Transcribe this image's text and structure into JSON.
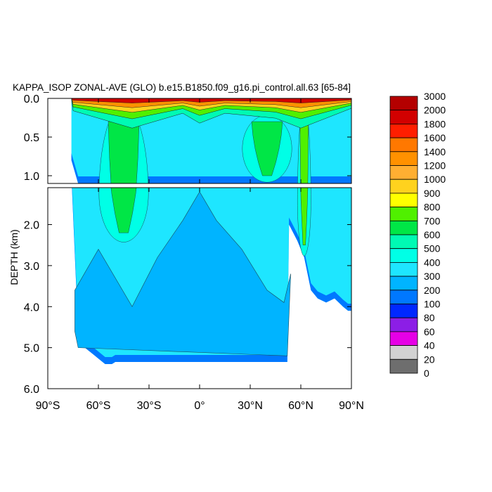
{
  "chart_data": {
    "type": "heatmap",
    "title": "KAPPA_ISOP ZONAL-AVE (GLO) b.e15.B1850.f09_g16.pi_control.all.63 [65-84]",
    "xlabel": "",
    "ylabel": "DEPTH (km)",
    "xlim": [
      -90,
      90
    ],
    "ylim": [
      6.0,
      0.0
    ],
    "x_ticks": [
      {
        "value": -90,
        "label": "90°S"
      },
      {
        "value": -60,
        "label": "60°S"
      },
      {
        "value": -30,
        "label": "30°S"
      },
      {
        "value": 0,
        "label": "0°"
      },
      {
        "value": 30,
        "label": "30°N"
      },
      {
        "value": 60,
        "label": "60°N"
      },
      {
        "value": 90,
        "label": "90°N"
      }
    ],
    "y_ticks_upper": [
      {
        "value": 0.0,
        "label": "0.0"
      },
      {
        "value": 0.5,
        "label": "0.5"
      },
      {
        "value": 1.0,
        "label": "1.0"
      }
    ],
    "y_ticks_lower": [
      {
        "value": 2.0,
        "label": "2.0"
      },
      {
        "value": 3.0,
        "label": "3.0"
      },
      {
        "value": 4.0,
        "label": "4.0"
      },
      {
        "value": 5.0,
        "label": "5.0"
      },
      {
        "value": 6.0,
        "label": "6.0"
      }
    ],
    "panels": [
      {
        "name": "upper",
        "depth_range": [
          0.0,
          1.1
        ]
      },
      {
        "name": "lower",
        "depth_range": [
          1.1,
          6.0
        ]
      }
    ],
    "colorbar": {
      "position": "right",
      "levels": [
        {
          "label": "3000",
          "color": "#b40000"
        },
        {
          "label": "2000",
          "color": "#d20000"
        },
        {
          "label": "1800",
          "color": "#ff1e00"
        },
        {
          "label": "1600",
          "color": "#ff7800"
        },
        {
          "label": "1400",
          "color": "#ff9100"
        },
        {
          "label": "1200",
          "color": "#ffaf32"
        },
        {
          "label": "1000",
          "color": "#ffd21e"
        },
        {
          "label": "900",
          "color": "#ffff00"
        },
        {
          "label": "800",
          "color": "#50f000"
        },
        {
          "label": "700",
          "color": "#00e646"
        },
        {
          "label": "600",
          "color": "#00fab4"
        },
        {
          "label": "500",
          "color": "#00ffe6"
        },
        {
          "label": "400",
          "color": "#1ee6ff"
        },
        {
          "label": "300",
          "color": "#00b4ff"
        },
        {
          "label": "200",
          "color": "#0078ff"
        },
        {
          "label": "100",
          "color": "#0028ff"
        },
        {
          "label": "80",
          "color": "#8c1ee6"
        },
        {
          "label": "60",
          "color": "#e600e6"
        },
        {
          "label": "40",
          "color": "#d2d2d2"
        },
        {
          "label": "20",
          "color": "#6e6e6e"
        },
        {
          "label": "0",
          "color": ""
        }
      ]
    },
    "field_profiles": {
      "surface_layer": {
        "lat": [
          -75,
          -40,
          -10,
          0,
          15,
          45,
          60,
          90
        ],
        "depth_km": [
          0.05,
          0.12,
          0.06,
          0.1,
          0.06,
          0.08,
          0.12,
          0.04
        ],
        "value": 2000
      },
      "green_tongues": [
        {
          "lat_center": -45,
          "depth_range": [
            0.3,
            2.2
          ],
          "value": 700
        },
        {
          "lat_center": 40,
          "depth_range": [
            0.3,
            1.0
          ],
          "value": 700
        },
        {
          "lat_center": 62,
          "depth_range": [
            0.3,
            2.5
          ],
          "value": 800
        }
      ],
      "ocean_floor": {
        "lat": [
          -76,
          -72,
          -68,
          -62,
          -56,
          -52,
          -50,
          -45,
          -30,
          0,
          30,
          48,
          52,
          53,
          58,
          62,
          66,
          70,
          75,
          80,
          85,
          88,
          90
        ],
        "depth_km": [
          0.8,
          4.6,
          5.0,
          5.2,
          5.4,
          5.4,
          5.35,
          5.35,
          5.35,
          5.35,
          5.35,
          5.35,
          5.35,
          2.0,
          2.4,
          2.8,
          3.6,
          3.8,
          3.9,
          3.8,
          4.0,
          4.1,
          4.1
        ]
      },
      "deep_blue_top": {
        "lat": [
          -74,
          -60,
          -40,
          -25,
          -10,
          0,
          10,
          25,
          40,
          50,
          54
        ],
        "depth_km": [
          3.6,
          2.6,
          4.0,
          2.8,
          1.9,
          1.2,
          1.9,
          2.6,
          3.6,
          3.9,
          3.2
        ]
      }
    }
  }
}
